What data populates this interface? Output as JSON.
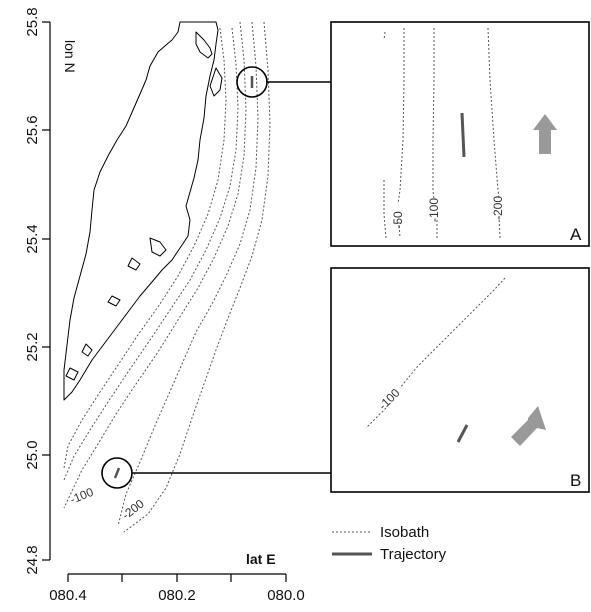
{
  "main_map": {
    "x_axis": {
      "title": "lat E",
      "ticks": [
        "080.4",
        "080.2",
        "080.0"
      ]
    },
    "y_axis": {
      "title": "lon N",
      "ticks": [
        "24.8",
        "25.0",
        "25.2",
        "25.4",
        "25.6",
        "25.8"
      ]
    },
    "isobath_labels": [
      "-100",
      "-200"
    ]
  },
  "inset_a": {
    "letter": "A",
    "isobath_labels": [
      "-50",
      "-100",
      "-200"
    ]
  },
  "inset_b": {
    "letter": "B",
    "isobath_labels": [
      "-100"
    ]
  },
  "legend": {
    "isobath": "Isobath",
    "trajectory": "Trajectory"
  },
  "colors": {
    "coastline": "#000000",
    "isobath": "#555555",
    "trajectory": "#555555",
    "arrow": "#999999"
  }
}
